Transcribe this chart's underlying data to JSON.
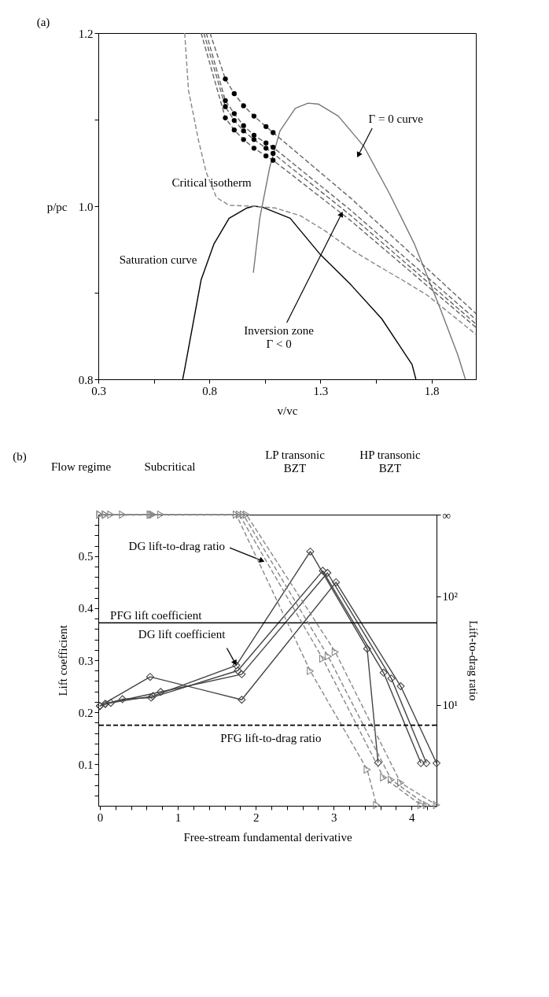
{
  "chart_data": [
    {
      "type": "line",
      "xlabel": "v/vc",
      "ylabel": "p/pc",
      "xlim": [
        0.3,
        2.0
      ],
      "ylim": [
        0.8,
        1.2
      ],
      "xticks": [
        0.3,
        {
          "value": 0.55,
          "label": null
        },
        0.8,
        {
          "value": 1.05,
          "label": null
        },
        1.3,
        {
          "value": 1.55,
          "label": null
        },
        1.8
      ],
      "yticks": [
        0.8,
        {
          "value": 0.9,
          "label": null
        },
        {
          "value": 1.0,
          "label": "1.0"
        },
        {
          "value": 1.1,
          "label": null
        },
        1.2
      ],
      "grid": false,
      "series": [
        {
          "color": "#000000",
          "line_style": "solid",
          "marker": "none",
          "x": [
            0.68,
            0.689,
            0.763,
            0.82,
            0.889,
            0.97,
            1.0,
            1.038,
            1.164,
            1.3,
            1.438,
            1.576,
            1.713,
            1.73
          ],
          "values": [
            0.8,
            0.812,
            0.915,
            0.956,
            0.986,
            0.998,
            1.0,
            0.999,
            0.986,
            0.944,
            0.909,
            0.87,
            0.817,
            0.8
          ]
        },
        {
          "color": "#777777",
          "line_style": "solid",
          "marker": "none",
          "x": [
            0.998,
            1.027,
            1.072,
            1.118,
            1.187,
            1.244,
            1.29,
            1.381,
            1.496,
            1.61,
            1.724,
            1.839,
            1.919,
            1.953
          ],
          "values": [
            0.923,
            0.986,
            1.045,
            1.087,
            1.113,
            1.119,
            1.118,
            1.104,
            1.069,
            1.015,
            0.956,
            0.882,
            0.828,
            0.8
          ]
        },
        {
          "color": "#888888",
          "line_style": "dashed",
          "marker": "none",
          "x": [
            0.689,
            0.706,
            0.752,
            0.786,
            0.832,
            0.889,
            0.998,
            1.095,
            1.21,
            1.324,
            1.438,
            1.553,
            1.667,
            1.782,
            2.0
          ],
          "values": [
            1.2,
            1.134,
            1.075,
            1.039,
            1.01,
            1.001,
            1.0,
            0.998,
            0.989,
            0.971,
            0.95,
            0.932,
            0.915,
            0.897,
            0.852
          ]
        },
        {
          "color": "#666666",
          "line_style": "dashed",
          "marker": "none",
          "x": [
            0.803,
            0.872,
            0.912,
            0.954,
            1.001,
            1.055,
            1.087,
            1.438,
            2.0
          ],
          "values": [
            1.2,
            1.147,
            1.13,
            1.116,
            1.104,
            1.092,
            1.085,
            1.009,
            0.876
          ]
        },
        {
          "color": "#666666",
          "line_style": "dashed",
          "marker": "none",
          "x": [
            0.786,
            0.872,
            0.912,
            0.954,
            1.001,
            1.055,
            1.087,
            1.438,
            2.0
          ],
          "values": [
            1.2,
            1.122,
            1.107,
            1.093,
            1.082,
            1.073,
            1.068,
            0.995,
            0.869
          ]
        },
        {
          "color": "#666666",
          "line_style": "dashed",
          "marker": "none",
          "x": [
            0.775,
            0.872,
            0.912,
            0.954,
            1.001,
            1.055,
            1.087,
            1.438,
            2.0
          ],
          "values": [
            1.2,
            1.115,
            1.099,
            1.087,
            1.077,
            1.067,
            1.061,
            0.989,
            0.864
          ]
        },
        {
          "color": "#666666",
          "line_style": "dashed",
          "marker": "none",
          "x": [
            0.763,
            0.872,
            0.912,
            0.954,
            1.001,
            1.055,
            1.087,
            1.438,
            2.0
          ],
          "values": [
            1.2,
            1.102,
            1.088,
            1.077,
            1.067,
            1.058,
            1.053,
            0.983,
            0.86
          ]
        },
        {
          "type": "scatter",
          "color": "#000000",
          "marker": "circle",
          "x": [
            0.872,
            0.912,
            0.954,
            1.001,
            1.055,
            1.087,
            0.872,
            0.912,
            0.954,
            1.001,
            1.055,
            1.087,
            0.872,
            0.912,
            0.954,
            1.001,
            1.055,
            1.087,
            0.872,
            0.912,
            0.954,
            1.001,
            1.055,
            1.087
          ],
          "values": [
            1.147,
            1.13,
            1.116,
            1.104,
            1.092,
            1.085,
            1.122,
            1.107,
            1.093,
            1.082,
            1.073,
            1.068,
            1.115,
            1.099,
            1.087,
            1.077,
            1.067,
            1.061,
            1.102,
            1.088,
            1.077,
            1.067,
            1.058,
            1.053
          ]
        }
      ],
      "annotations": [
        "(a)",
        "Critical isotherm",
        "Saturation curve",
        {
          "text": "Γ = 0 curve",
          "x": 1.473,
          "y": 1.06
        },
        {
          "text": "Inversion zone\nΓ < 0",
          "x": 1.393,
          "y": 0.99
        }
      ]
    },
    {
      "type": "line",
      "xlabel": "Free-stream fundamental derivative",
      "ylabel": "Lift coefficient",
      "y2label": "Lift-to-drag ratio",
      "xlim": [
        -0.02,
        4.32
      ],
      "ylim": [
        0.02,
        0.58
      ],
      "y2lim": [
        1.18,
        562
      ],
      "log": "y2",
      "xticks": [
        0,
        {
          "value": 0.2,
          "label": null
        },
        {
          "value": 0.4,
          "label": null
        },
        {
          "value": 0.6,
          "label": null
        },
        {
          "value": 0.8,
          "label": null
        },
        1,
        {
          "value": 1.2,
          "label": null
        },
        {
          "value": 1.4,
          "label": null
        },
        {
          "value": 1.6,
          "label": null
        },
        {
          "value": 1.8,
          "label": null
        },
        2,
        {
          "value": 2.2,
          "label": null
        },
        {
          "value": 2.4,
          "label": null
        },
        {
          "value": 2.6,
          "label": null
        },
        {
          "value": 2.8,
          "label": null
        },
        3,
        {
          "value": 3.2,
          "label": null
        },
        {
          "value": 3.4,
          "label": null
        },
        {
          "value": 3.6,
          "label": null
        },
        {
          "value": 3.8,
          "label": null
        },
        4,
        {
          "value": 4.2,
          "label": null
        }
      ],
      "yticks": [
        {
          "value": 0.04,
          "label": null
        },
        {
          "value": 0.06,
          "label": null
        },
        {
          "value": 0.08,
          "label": null
        },
        0.1,
        {
          "value": 0.12,
          "label": null
        },
        {
          "value": 0.14,
          "label": null
        },
        {
          "value": 0.16,
          "label": null
        },
        {
          "value": 0.18,
          "label": null
        },
        0.2,
        {
          "value": 0.22,
          "label": null
        },
        {
          "value": 0.24,
          "label": null
        },
        {
          "value": 0.26,
          "label": null
        },
        {
          "value": 0.28,
          "label": null
        },
        0.3,
        {
          "value": 0.32,
          "label": null
        },
        {
          "value": 0.34,
          "label": null
        },
        {
          "value": 0.36,
          "label": null
        },
        {
          "value": 0.38,
          "label": null
        },
        0.4,
        {
          "value": 0.42,
          "label": null
        },
        {
          "value": 0.44,
          "label": null
        },
        {
          "value": 0.46,
          "label": null
        },
        {
          "value": 0.48,
          "label": null
        },
        0.5,
        {
          "value": 0.52,
          "label": null
        },
        {
          "value": 0.54,
          "label": null
        },
        {
          "value": 0.56,
          "label": null
        }
      ],
      "y2ticks": [
        {
          "value": 10,
          "label": "10¹"
        },
        {
          "value": 100,
          "label": "10²"
        },
        {
          "value": 562,
          "label": "∞"
        }
      ],
      "grid": false,
      "series": [
        {
          "color": "#444444",
          "line_style": "solid",
          "marker": "diamond",
          "x": [
            0,
            0.14,
            0.68,
            1.75,
            2.7,
            3.43,
            3.57
          ],
          "values": [
            0.212,
            0.218,
            0.231,
            0.29,
            0.509,
            0.322,
            0.103
          ]
        },
        {
          "color": "#444444",
          "line_style": "solid",
          "marker": "diamond",
          "x": [
            0.07,
            0.29,
            0.657,
            1.77,
            2.86,
            3.64,
            4.12
          ],
          "values": [
            0.216,
            0.225,
            0.228,
            0.28,
            0.472,
            0.276,
            0.102
          ]
        },
        {
          "color": "#444444",
          "line_style": "solid",
          "marker": "diamond",
          "x": [
            0.07,
            0.78,
            1.82,
            2.92,
            3.74,
            4.19
          ],
          "values": [
            0.216,
            0.239,
            0.273,
            0.468,
            0.265,
            0.102
          ]
        },
        {
          "color": "#444444",
          "line_style": "solid",
          "marker": "diamond",
          "x": [
            0,
            0.645,
            1.82,
            3.03,
            3.86,
            4.32
          ],
          "values": [
            0.212,
            0.268,
            0.224,
            0.45,
            0.25,
            0.102
          ]
        },
        {
          "axis": "y2",
          "color": "#888888",
          "line_style": "dashed",
          "marker": "triangle",
          "x": [
            0,
            0.14,
            0.68,
            1.75,
            2.7,
            3.43,
            3.55
          ],
          "values": [
            562,
            562,
            562,
            562,
            20.5,
            2.54,
            1.2
          ]
        },
        {
          "axis": "y2",
          "color": "#888888",
          "line_style": "dashed",
          "marker": "triangle",
          "x": [
            0.07,
            0.29,
            0.657,
            1.79,
            2.86,
            3.64,
            4.12
          ],
          "values": [
            562,
            562,
            562,
            562,
            26.6,
            2.15,
            1.2
          ]
        },
        {
          "axis": "y2",
          "color": "#888888",
          "line_style": "dashed",
          "marker": "triangle",
          "x": [
            0.07,
            0.78,
            1.84,
            2.93,
            3.74,
            4.19
          ],
          "values": [
            562,
            562,
            562,
            27.9,
            2.05,
            1.2
          ]
        },
        {
          "axis": "y2",
          "color": "#888888",
          "line_style": "dashed",
          "marker": "triangle",
          "x": [
            0,
            0.645,
            1.88,
            3.02,
            3.86,
            4.32
          ],
          "values": [
            562,
            562,
            562,
            30.7,
            1.92,
            1.2
          ]
        }
      ],
      "ref_lines": [
        {
          "axis": "y",
          "value": 0.372,
          "label": "PFG lift coefficient",
          "color": "#000000",
          "line_style": "solid"
        },
        {
          "axis": "y2",
          "value": 6.5,
          "label": "PFG lift-to-drag ratio",
          "color": "#000000",
          "line_style": "dashed"
        }
      ],
      "annotations": [
        "(b)",
        "Flow regime",
        "Subcritical",
        "LP transonic\nBZT",
        "HP transonic\nBZT",
        {
          "text": "DG lift-to-drag ratio",
          "x": 2.07,
          "y": 0.492
        },
        {
          "text": "DG lift coefficient",
          "x": 1.73,
          "y": 0.296
        }
      ]
    }
  ]
}
